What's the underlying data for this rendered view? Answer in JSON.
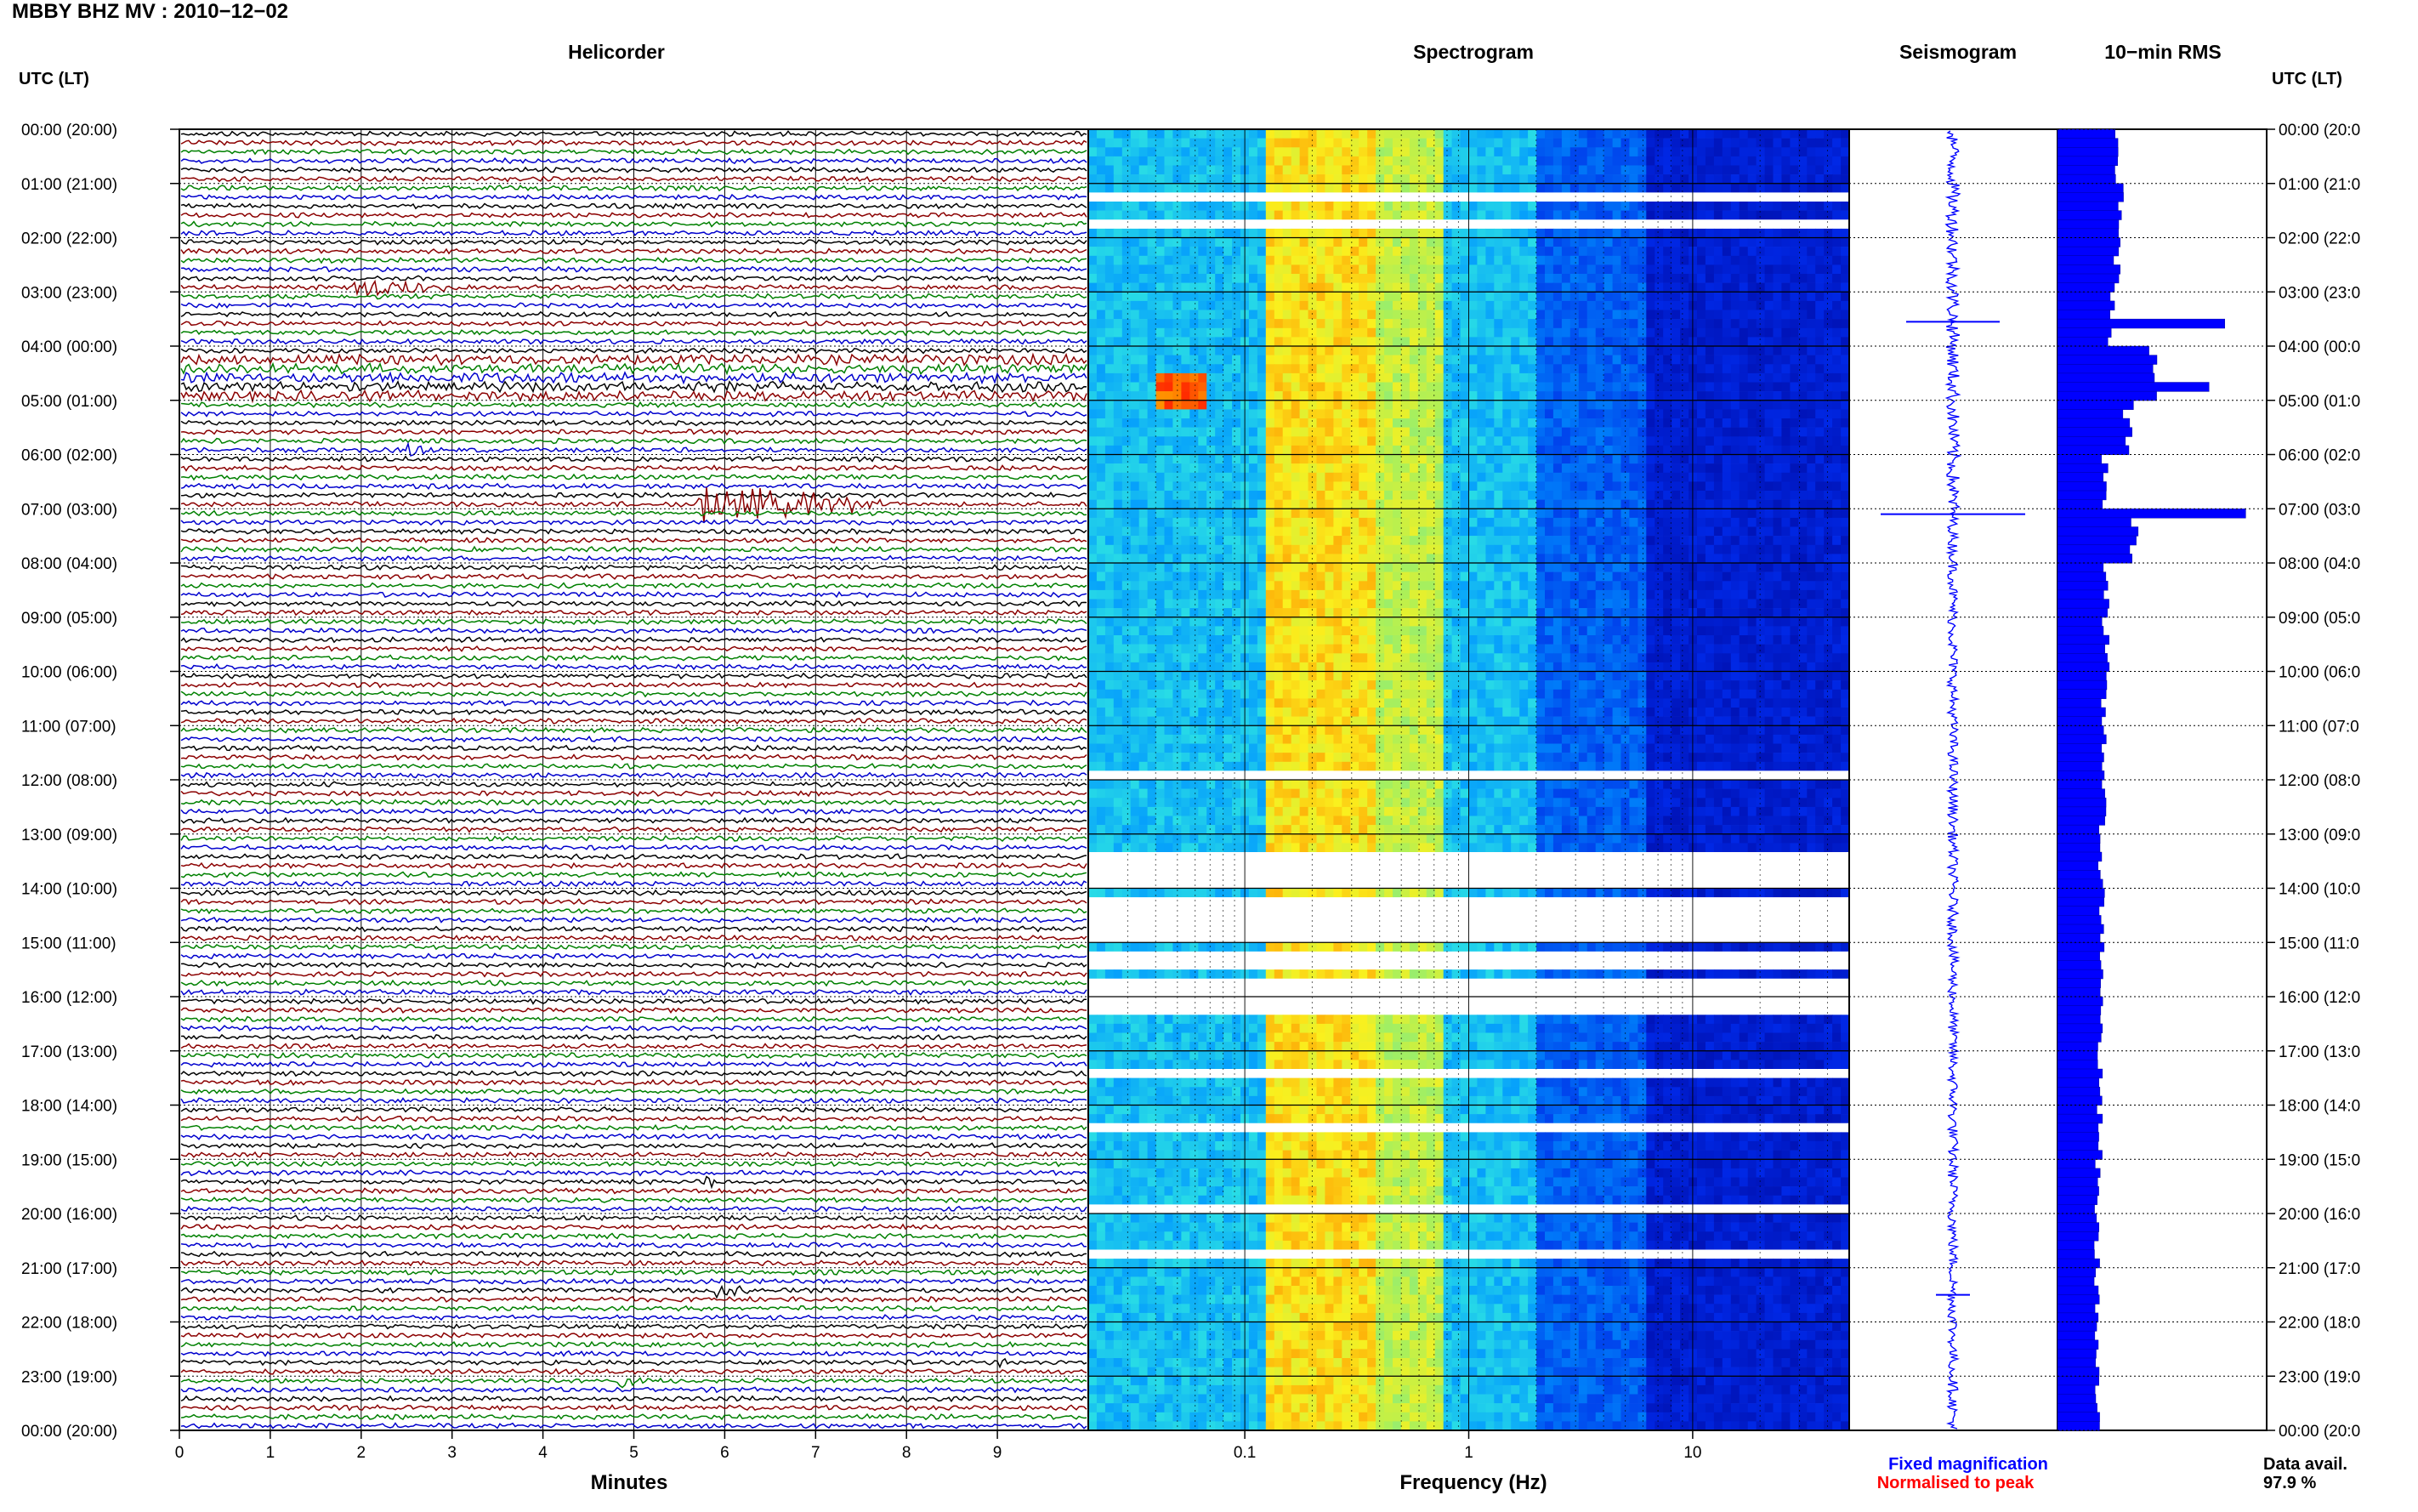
{
  "header": {
    "title": "MBBY BHZ MV : 2010−12−02",
    "utc_left": "UTC (LT)",
    "utc_right": "UTC (LT)"
  },
  "panels": {
    "helicorder": "Helicorder",
    "spectrogram": "Spectrogram",
    "seismogram": "Seismogram",
    "rms": "10−min RMS"
  },
  "axes": {
    "minutes_label": "Minutes",
    "frequency_label": "Frequency (Hz)"
  },
  "legend": {
    "fixed": "Fixed magnification",
    "normalised": "Normalised to peak",
    "fixed_color": "#0000ff",
    "normalised_color": "#ff0000"
  },
  "availability": {
    "label": "Data avail.",
    "value": "97.9 %"
  },
  "colors": {
    "trace_cycle": [
      "#000000",
      "#8b0000",
      "#008000",
      "#0000cd"
    ],
    "rms_bar": "#0000ff",
    "spectro_cold": "#00008b",
    "spectro_hot": "#ff2200"
  },
  "chart_data": [
    {
      "type": "line",
      "title": "Helicorder",
      "xlabel": "Minutes",
      "ylabel": "UTC (LT)",
      "xlim": [
        0,
        10
      ],
      "x_ticks": [
        "0",
        "1",
        "2",
        "3",
        "4",
        "5",
        "6",
        "7",
        "8",
        "9"
      ],
      "time_labels": [
        "00:00 (20:00)",
        "01:00 (21:00)",
        "02:00 (22:00)",
        "03:00 (23:00)",
        "04:00 (00:00)",
        "05:00 (01:00)",
        "06:00 (02:00)",
        "07:00 (03:00)",
        "08:00 (04:00)",
        "09:00 (05:00)",
        "10:00 (06:00)",
        "11:00 (07:00)",
        "12:00 (08:00)",
        "13:00 (09:00)",
        "14:00 (10:00)",
        "15:00 (11:00)",
        "16:00 (12:00)",
        "17:00 (13:00)",
        "18:00 (14:00)",
        "19:00 (15:00)",
        "20:00 (16:00)",
        "21:00 (17:00)",
        "22:00 (18:00)",
        "23:00 (19:00)",
        "00:00 (20:00)"
      ],
      "right_time_labels": [
        "00:00 (20:0",
        "01:00 (21:0",
        "02:00 (22:0",
        "03:00 (23:0",
        "04:00 (00:0",
        "05:00 (01:0",
        "06:00 (02:0",
        "07:00 (03:0",
        "08:00 (04:0",
        "09:00 (05:0",
        "10:00 (06:0",
        "11:00 (07:0",
        "12:00 (08:0",
        "13:00 (09:0",
        "14:00 (10:0",
        "15:00 (11:0",
        "16:00 (12:0",
        "17:00 (13:0",
        "18:00 (14:0",
        "19:00 (15:0",
        "20:00 (16:0",
        "21:00 (17:0",
        "22:00 (18:0",
        "23:00 (19:0",
        "00:00 (20:0"
      ],
      "rows": 144,
      "events": [
        {
          "row": 17,
          "minute": 1.9,
          "amplitude": 1.3,
          "length_min": 1.2
        },
        {
          "row": 41,
          "minute": 5.7,
          "amplitude": 3.2,
          "length_min": 2.3
        },
        {
          "row": 35,
          "minute": 2.5,
          "amplitude": 1.0,
          "length_min": 0.3
        },
        {
          "row": 116,
          "minute": 5.75,
          "amplitude": 0.9,
          "length_min": 0.3
        },
        {
          "row": 128,
          "minute": 5.9,
          "amplitude": 1.0,
          "length_min": 0.4
        },
        {
          "row": 136,
          "minute": 9.0,
          "amplitude": 0.8,
          "length_min": 0.4
        },
        {
          "row": 138,
          "minute": 4.8,
          "amplitude": 0.8,
          "length_min": 0.3
        }
      ],
      "noisy_rows": [
        25,
        26,
        27,
        28,
        29
      ]
    },
    {
      "type": "heatmap",
      "title": "Spectrogram",
      "xlabel": "Frequency (Hz)",
      "x_scale": "log",
      "xlim": [
        0.02,
        50
      ],
      "x_ticks": [
        "0.1",
        "1",
        "10"
      ],
      "rows": 144,
      "gap_rows_hours": [
        1.1,
        1.65,
        11.75,
        11.9,
        13.25,
        13.35,
        13.5,
        13.65,
        13.8,
        14.1,
        14.3,
        14.45,
        14.65,
        14.85,
        15.1,
        15.4,
        15.65,
        15.8,
        15.95,
        16.1,
        17.4,
        18.4,
        19.8,
        20.7
      ],
      "hot_spot": {
        "hour_from": 4.5,
        "hour_to": 5.1,
        "freq_from": 0.04,
        "freq_to": 0.07
      }
    },
    {
      "type": "line",
      "title": "Seismogram",
      "spikes_hours": [
        3.55,
        7.1,
        21.5
      ]
    },
    {
      "type": "bar",
      "title": "10−min RMS",
      "orientation": "horizontal",
      "hourly_rms": [
        1.1,
        1.2,
        1.12,
        1.02,
        1.9,
        1.35,
        0.9,
        1.45,
        0.95,
        0.92,
        0.88,
        0.9,
        0.86,
        0.84,
        0.85,
        0.86,
        0.82,
        0.8,
        0.8,
        0.76,
        0.75,
        0.76,
        0.74,
        0.75
      ],
      "peaks": [
        {
          "hour": 3.6,
          "value": 3.2
        },
        {
          "hour": 4.8,
          "value": 2.9
        },
        {
          "hour": 7.05,
          "value": 3.6
        }
      ],
      "xlim": [
        0,
        4
      ]
    }
  ]
}
